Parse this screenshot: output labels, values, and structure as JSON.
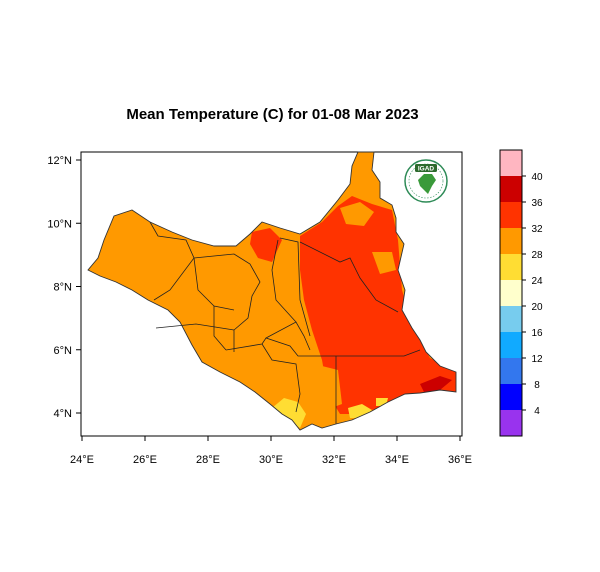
{
  "title": "Mean Temperature (C) for 01-08 Mar 2023",
  "logo": {
    "text": "IGAD",
    "colors": {
      "ring": "#2e8b57",
      "map": "#3a9a3a",
      "badge": "#2d6a2d"
    }
  },
  "map": {
    "lon_range": [
      24,
      36
    ],
    "lat_range": [
      3.5,
      12.3
    ],
    "x_ticks": [
      24,
      26,
      28,
      30,
      32,
      34,
      36
    ],
    "x_tick_labels": [
      "24°E",
      "26°E",
      "28°E",
      "30°E",
      "32°E",
      "34°E",
      "36°E"
    ],
    "y_ticks": [
      4,
      6,
      8,
      10,
      12
    ],
    "y_tick_labels": [
      "4°N",
      "6°N",
      "8°N",
      "10°N",
      "12°N"
    ],
    "dominant_class": "28-32",
    "hot_region": "32-36 (east and north)",
    "cool_region": "24-28 (southern border)"
  },
  "colorbar": {
    "labels": [
      "40",
      "36",
      "32",
      "28",
      "24",
      "20",
      "16",
      "12",
      "8",
      "4"
    ],
    "colors_top_to_bottom": [
      "#ffb6c1",
      "#cc0000",
      "#ff3300",
      "#ff9900",
      "#ffdd33",
      "#ffffcc",
      "#77ccee",
      "#11aaff",
      "#3377ee",
      "#0000ff",
      "#9933ee"
    ]
  }
}
